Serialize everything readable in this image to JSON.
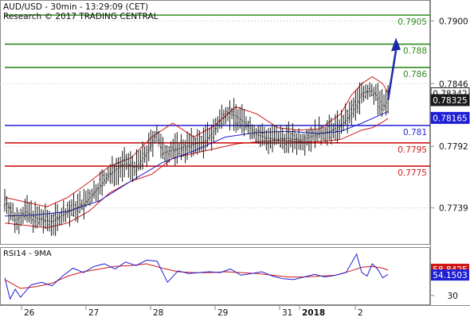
{
  "header": {
    "title": "AUD/USD - 30min - 13:29:09 (CET)",
    "subtitle": "Research © 2017 TRADING CENTRAL"
  },
  "rsi_panel": {
    "label": "RSI14 - 9MA"
  },
  "colors": {
    "up_level": "#2e8b1e",
    "pivot": "#1f1fd6",
    "down_level": "#d01818",
    "bollinger": "#d01818",
    "moving_average": "#1f1fd6",
    "price": "#1a1a1a",
    "rsi": "#1f1fd6",
    "rsi_ma": "#d01818",
    "arrow": "#1a2aa8",
    "price_badge": "#1a1a1a",
    "pivot_badge": "#1f1fd6"
  },
  "chart_data": [
    {
      "type": "candlestick",
      "instrument": "AUD/USD",
      "timeframe": "30min",
      "y_tick_labels": [
        {
          "label": "0.7900",
          "value": 0.79
        },
        {
          "label": "0.7846",
          "value": 0.7846
        },
        {
          "label": "0.7792",
          "value": 0.7792
        },
        {
          "label": "0.7739",
          "value": 0.7739
        }
      ],
      "ylim": [
        0.7708,
        0.7918
      ],
      "x_tick_labels": [
        "26",
        "27",
        "28",
        "29",
        "31",
        "2018",
        "2"
      ],
      "levels": [
        {
          "label": "0.7905",
          "value": 0.7905,
          "color": "#2e8b1e"
        },
        {
          "label": "0.788",
          "value": 0.788,
          "color": "#2e8b1e"
        },
        {
          "label": "0.786",
          "value": 0.786,
          "color": "#2e8b1e"
        },
        {
          "label": "0.781",
          "value": 0.781,
          "color": "#1f1fd6"
        },
        {
          "label": "0.7795",
          "value": 0.7795,
          "color": "#d01818"
        },
        {
          "label": "0.7775",
          "value": 0.7775,
          "color": "#d01818"
        }
      ],
      "badges": [
        {
          "label": "0.78342",
          "value": 0.78342,
          "style": "boxed"
        },
        {
          "label": "0.78325",
          "value": 0.78325,
          "style": "dark"
        },
        {
          "label": "0.78165",
          "value": 0.78165,
          "style": "blue"
        }
      ],
      "price_path": [
        [
          0,
          0.7746
        ],
        [
          2,
          0.7728
        ],
        [
          4,
          0.7736
        ],
        [
          6,
          0.773
        ],
        [
          9,
          0.7727
        ],
        [
          11,
          0.7733
        ],
        [
          13,
          0.7738
        ],
        [
          15,
          0.7742
        ],
        [
          17,
          0.7752
        ],
        [
          19,
          0.7763
        ],
        [
          21,
          0.7772
        ],
        [
          23,
          0.7777
        ],
        [
          25,
          0.7774
        ],
        [
          27,
          0.7786
        ],
        [
          29,
          0.7804
        ],
        [
          30,
          0.7786
        ],
        [
          32,
          0.7789
        ],
        [
          34,
          0.7791
        ],
        [
          36,
          0.7794
        ],
        [
          38,
          0.7796
        ],
        [
          40,
          0.7806
        ],
        [
          42,
          0.7822
        ],
        [
          44,
          0.7818
        ],
        [
          46,
          0.7811
        ],
        [
          48,
          0.7802
        ],
        [
          50,
          0.7799
        ],
        [
          52,
          0.7798
        ],
        [
          54,
          0.7799
        ],
        [
          56,
          0.7797
        ],
        [
          58,
          0.78
        ],
        [
          60,
          0.7803
        ],
        [
          62,
          0.7805
        ],
        [
          64,
          0.781
        ],
        [
          66,
          0.782
        ],
        [
          68,
          0.7838
        ],
        [
          70,
          0.784
        ],
        [
          71,
          0.7834
        ],
        [
          72,
          0.7826
        ],
        [
          73,
          0.7832
        ]
      ],
      "moving_average": [
        [
          0,
          0.7732
        ],
        [
          6,
          0.7733
        ],
        [
          12,
          0.7736
        ],
        [
          18,
          0.7745
        ],
        [
          24,
          0.7762
        ],
        [
          30,
          0.7778
        ],
        [
          36,
          0.7788
        ],
        [
          42,
          0.78
        ],
        [
          48,
          0.7804
        ],
        [
          54,
          0.7805
        ],
        [
          60,
          0.7803
        ],
        [
          64,
          0.7805
        ],
        [
          68,
          0.7812
        ],
        [
          73,
          0.7822
        ]
      ],
      "bollinger_upper": [
        [
          0,
          0.7748
        ],
        [
          4,
          0.7744
        ],
        [
          8,
          0.774
        ],
        [
          12,
          0.7748
        ],
        [
          16,
          0.7761
        ],
        [
          20,
          0.7775
        ],
        [
          24,
          0.7782
        ],
        [
          28,
          0.78
        ],
        [
          32,
          0.7812
        ],
        [
          36,
          0.78
        ],
        [
          40,
          0.781
        ],
        [
          44,
          0.7826
        ],
        [
          48,
          0.782
        ],
        [
          52,
          0.7808
        ],
        [
          56,
          0.7806
        ],
        [
          60,
          0.7807
        ],
        [
          64,
          0.782
        ],
        [
          66,
          0.7836
        ],
        [
          68,
          0.7846
        ],
        [
          70,
          0.7852
        ],
        [
          72,
          0.7846
        ],
        [
          73,
          0.7838
        ]
      ],
      "bollinger_lower": [
        [
          0,
          0.7726
        ],
        [
          4,
          0.7724
        ],
        [
          8,
          0.7722
        ],
        [
          12,
          0.7726
        ],
        [
          16,
          0.7736
        ],
        [
          20,
          0.7752
        ],
        [
          24,
          0.7762
        ],
        [
          28,
          0.7768
        ],
        [
          32,
          0.7782
        ],
        [
          36,
          0.7786
        ],
        [
          40,
          0.779
        ],
        [
          44,
          0.7794
        ],
        [
          48,
          0.7796
        ],
        [
          52,
          0.7797
        ],
        [
          56,
          0.7796
        ],
        [
          60,
          0.7796
        ],
        [
          64,
          0.7798
        ],
        [
          68,
          0.7806
        ],
        [
          70,
          0.7808
        ],
        [
          72,
          0.7813
        ],
        [
          73,
          0.7816
        ]
      ],
      "forecast_arrow": [
        [
          73,
          0.7832
        ],
        [
          74.5,
          0.788
        ]
      ]
    },
    {
      "type": "line",
      "name": "RSI14 - 9MA",
      "y_tick_labels": [
        {
          "label": "30",
          "value": 30
        }
      ],
      "ylim": [
        20,
        84
      ],
      "badges": [
        {
          "label": "58.8425",
          "value": 58.8425,
          "series": "rsi_ma"
        },
        {
          "label": "54.1503",
          "value": 54.1503,
          "series": "rsi"
        }
      ],
      "rsi": [
        [
          0,
          50
        ],
        [
          1,
          26
        ],
        [
          2,
          37
        ],
        [
          3,
          28
        ],
        [
          5,
          42
        ],
        [
          7,
          45
        ],
        [
          9,
          41
        ],
        [
          11,
          52
        ],
        [
          13,
          61
        ],
        [
          15,
          56
        ],
        [
          17,
          63
        ],
        [
          19,
          66
        ],
        [
          21,
          60
        ],
        [
          23,
          68
        ],
        [
          25,
          64
        ],
        [
          27,
          70
        ],
        [
          29,
          69
        ],
        [
          31,
          45
        ],
        [
          33,
          58
        ],
        [
          35,
          55
        ],
        [
          37,
          56
        ],
        [
          39,
          57
        ],
        [
          41,
          56
        ],
        [
          43,
          60
        ],
        [
          45,
          53
        ],
        [
          47,
          55
        ],
        [
          49,
          57
        ],
        [
          51,
          52
        ],
        [
          53,
          49
        ],
        [
          55,
          48
        ],
        [
          57,
          51
        ],
        [
          59,
          54
        ],
        [
          61,
          51
        ],
        [
          63,
          53
        ],
        [
          65,
          56
        ],
        [
          67,
          77
        ],
        [
          68,
          56
        ],
        [
          69,
          52
        ],
        [
          70,
          66
        ],
        [
          71,
          60
        ],
        [
          72,
          50
        ],
        [
          73,
          54.15
        ]
      ],
      "rsi_ma": [
        [
          0,
          48
        ],
        [
          3,
          38
        ],
        [
          6,
          40
        ],
        [
          9,
          44
        ],
        [
          12,
          52
        ],
        [
          15,
          57
        ],
        [
          18,
          60
        ],
        [
          21,
          63
        ],
        [
          24,
          64
        ],
        [
          27,
          66
        ],
        [
          30,
          61
        ],
        [
          33,
          57
        ],
        [
          36,
          56
        ],
        [
          39,
          56
        ],
        [
          42,
          57
        ],
        [
          45,
          56
        ],
        [
          48,
          55
        ],
        [
          51,
          53
        ],
        [
          54,
          51
        ],
        [
          57,
          51
        ],
        [
          60,
          52
        ],
        [
          63,
          53
        ],
        [
          66,
          58
        ],
        [
          68,
          62
        ],
        [
          70,
          63
        ],
        [
          72,
          61
        ],
        [
          73,
          58.84
        ]
      ]
    }
  ]
}
